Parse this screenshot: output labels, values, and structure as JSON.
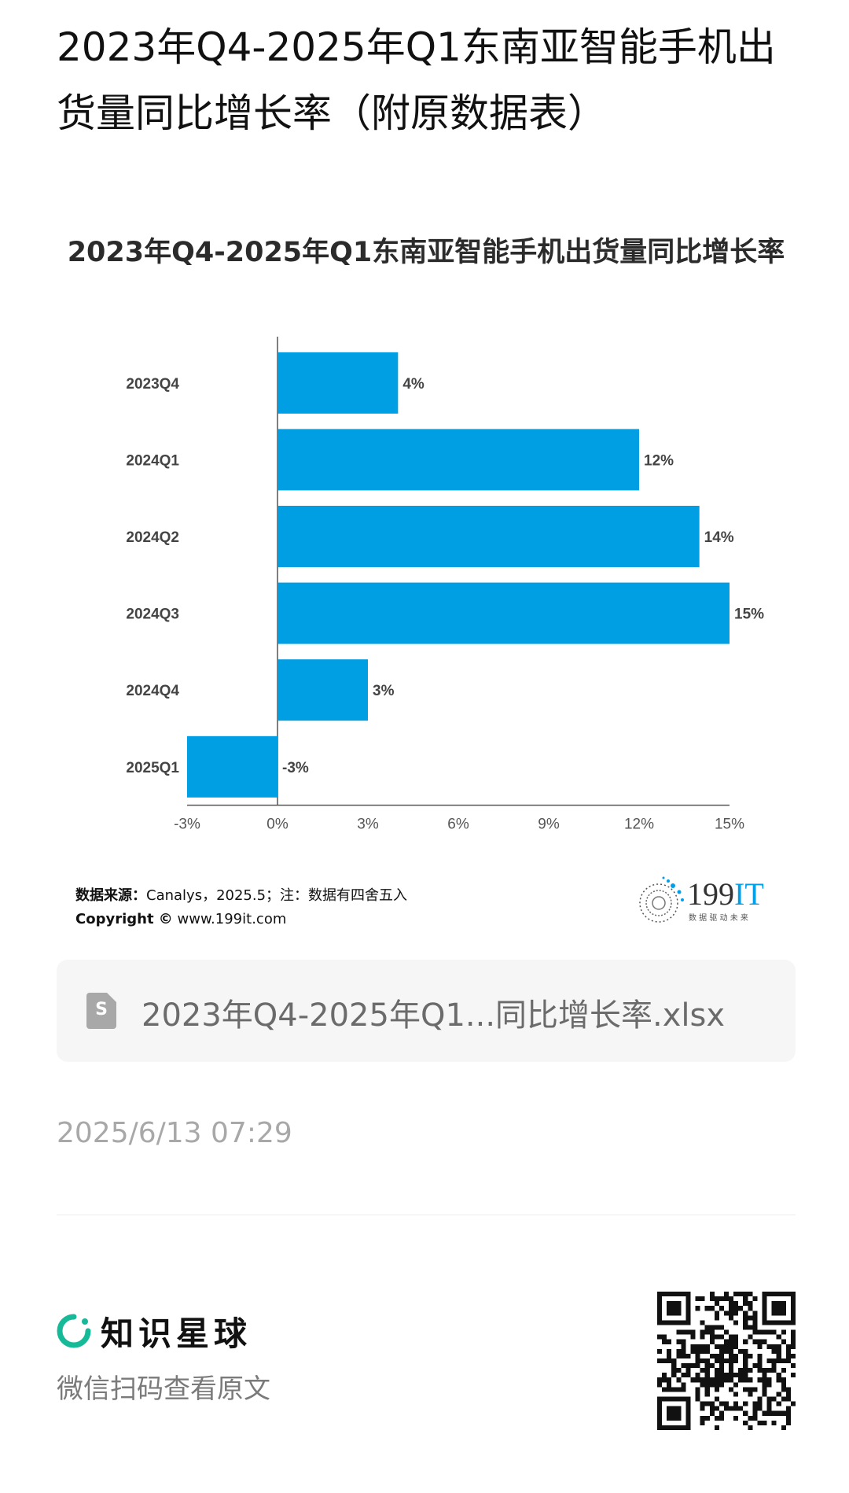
{
  "page": {
    "title": "2023年Q4-2025年Q1东南亚智能手机出货量同比增长率（附原数据表）"
  },
  "chart_data": {
    "type": "bar",
    "orientation": "horizontal",
    "title": "2023年Q4-2025年Q1东南亚智能手机出货量同比增长率",
    "categories": [
      "2023Q4",
      "2024Q1",
      "2024Q2",
      "2024Q3",
      "2024Q4",
      "2025Q1"
    ],
    "values": [
      4,
      12,
      14,
      15,
      3,
      -3
    ],
    "value_labels": [
      "4%",
      "12%",
      "14%",
      "15%",
      "3%",
      "-3%"
    ],
    "x_ticks": [
      "-3%",
      "0%",
      "3%",
      "6%",
      "9%",
      "12%",
      "15%"
    ],
    "xlim": [
      -3,
      15
    ],
    "bar_color": "#009fe3",
    "grid": false,
    "legend": "none"
  },
  "source": {
    "label": "数据来源：",
    "text": "Canalys，2025.5；注：数据有四舍五入",
    "copyright_label": "Copyright ©",
    "copyright_url": "www.199it.com"
  },
  "logo": {
    "name": "199IT",
    "tagline": "数 据 驱 动 未 来",
    "accent_color": "#00a0e9"
  },
  "attachment": {
    "icon": "spreadsheet-file-icon",
    "icon_letter": "S",
    "filename": "2023年Q4-2025年Q1...同比增长率.xlsx"
  },
  "post": {
    "timestamp": "2025/6/13 07:29"
  },
  "footer": {
    "brand_name": "知识星球",
    "brand_color": "#16b998",
    "scan_hint": "微信扫码查看原文"
  }
}
